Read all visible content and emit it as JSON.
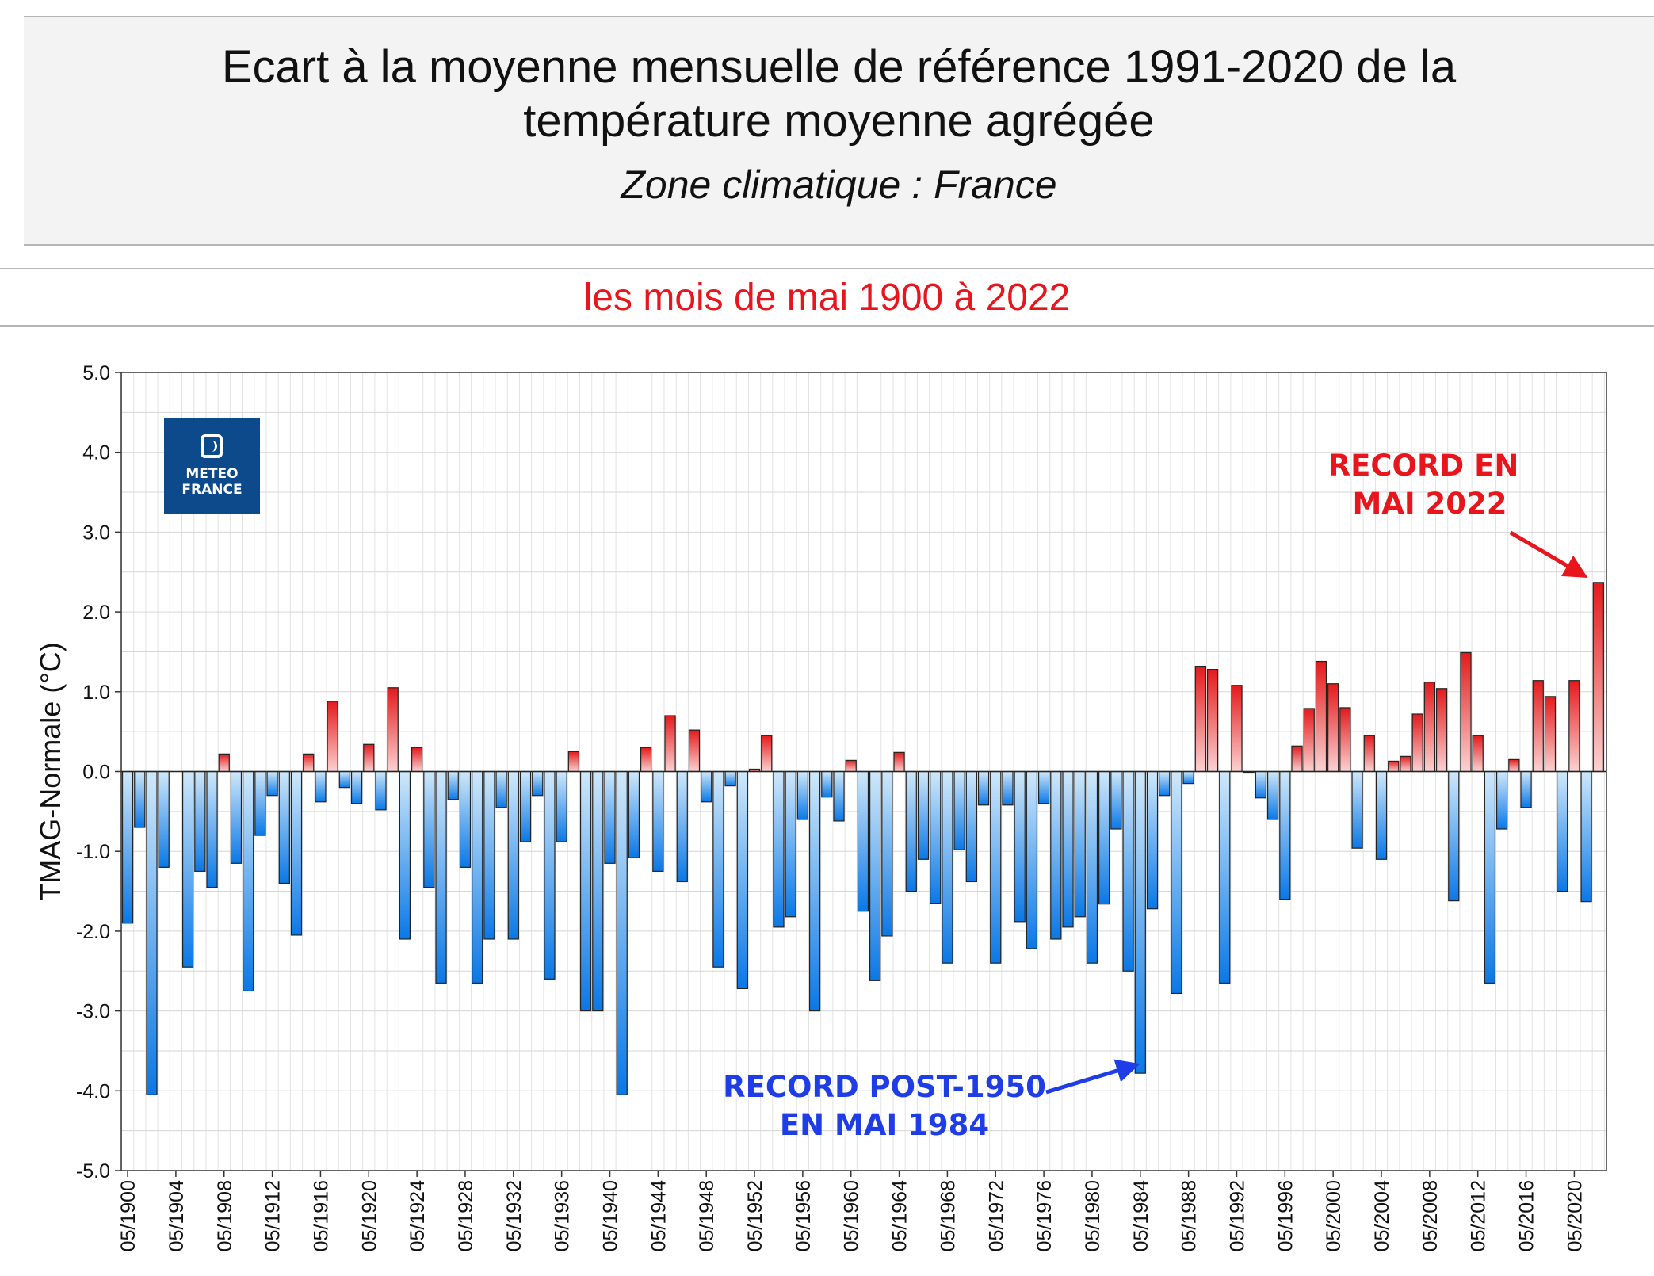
{
  "header": {
    "title_line1": "Ecart à la moyenne mensuelle de référence 1991-2020 de la",
    "title_line2": "température moyenne  agrégée",
    "zone": "Zone climatique : France",
    "subtitle": "les mois de mai 1900 à 2022"
  },
  "logo": {
    "line1": "METEO",
    "line2": "FRANCE",
    "icon": "meteo-france-icon"
  },
  "colors": {
    "positive": "#e31a1c",
    "negative": "#0a78e6",
    "subtitle": "#e8161c",
    "annotation_red": "#e8161c",
    "annotation_blue": "#1f3de6"
  },
  "chart_data": {
    "type": "bar",
    "ylabel": "TMAG-Normale (°C)",
    "xlabel": "",
    "ylim": [
      -5.0,
      5.0
    ],
    "yticks": [
      "5.0",
      "4.0",
      "3.0",
      "2.0",
      "1.0",
      "0.0",
      "-1.0",
      "-2.0",
      "-3.0",
      "-4.0",
      "-5.0"
    ],
    "grid": true,
    "x_start_year": 1900,
    "x_end_year": 2022,
    "xtick_labels": [
      "05/1900",
      "05/1904",
      "05/1908",
      "05/1912",
      "05/1916",
      "05/1920",
      "05/1924",
      "05/1928",
      "05/1932",
      "05/1936",
      "05/1940",
      "05/1944",
      "05/1948",
      "05/1952",
      "05/1956",
      "05/1960",
      "05/1964",
      "05/1968",
      "05/1972",
      "05/1976",
      "05/1980",
      "05/1984",
      "05/1988",
      "05/1992",
      "05/1996",
      "05/2000",
      "05/2004",
      "05/2008",
      "05/2012",
      "05/2016",
      "05/2020"
    ],
    "values": [
      -1.9,
      -0.7,
      -4.05,
      -1.2,
      0,
      -2.45,
      -1.25,
      -1.45,
      0.22,
      -1.15,
      -2.75,
      -0.8,
      -0.3,
      -1.4,
      -2.05,
      0.22,
      -0.38,
      0.88,
      -0.2,
      -0.4,
      0.34,
      -0.48,
      1.05,
      -2.1,
      0.3,
      -1.45,
      -2.65,
      -0.35,
      -1.2,
      -2.65,
      -2.1,
      -0.45,
      -2.1,
      -0.88,
      -0.3,
      -2.6,
      -0.88,
      0.25,
      -3.0,
      -3.0,
      -1.15,
      -4.05,
      -1.08,
      0.3,
      -1.25,
      0.7,
      -1.38,
      0.52,
      -0.38,
      -2.45,
      -0.18,
      -2.72,
      0.03,
      0.45,
      -1.95,
      -1.82,
      -0.6,
      -3.0,
      -0.32,
      -0.62,
      0.14,
      -1.75,
      -2.62,
      -2.06,
      0.24,
      -1.5,
      -1.1,
      -1.65,
      -2.4,
      -0.98,
      -1.38,
      -0.42,
      -2.4,
      -0.42,
      -1.88,
      -2.22,
      -0.4,
      -2.1,
      -1.95,
      -1.82,
      -2.4,
      -1.66,
      -0.72,
      -2.5,
      -3.78,
      -1.72,
      -0.3,
      -2.78,
      -0.15,
      1.32,
      1.28,
      -2.65,
      1.08,
      -0.01,
      -0.33,
      -0.6,
      -1.6,
      0.32,
      0.79,
      1.38,
      1.1,
      0.8,
      -0.96,
      0.45,
      -1.1,
      0.13,
      0.19,
      0.72,
      1.12,
      1.04,
      -1.62,
      1.49,
      0.45,
      -2.65,
      -0.72,
      0.15,
      -0.45,
      1.14,
      0.94,
      -1.5,
      1.14,
      -1.63,
      2.37
    ],
    "annotations": [
      {
        "line1": "RECORD EN",
        "line2": "MAI 2022",
        "color": "red",
        "year": 2022
      },
      {
        "line1": "RECORD POST-1950",
        "line2": "EN MAI 1984",
        "color": "blue",
        "year": 1984
      }
    ]
  }
}
